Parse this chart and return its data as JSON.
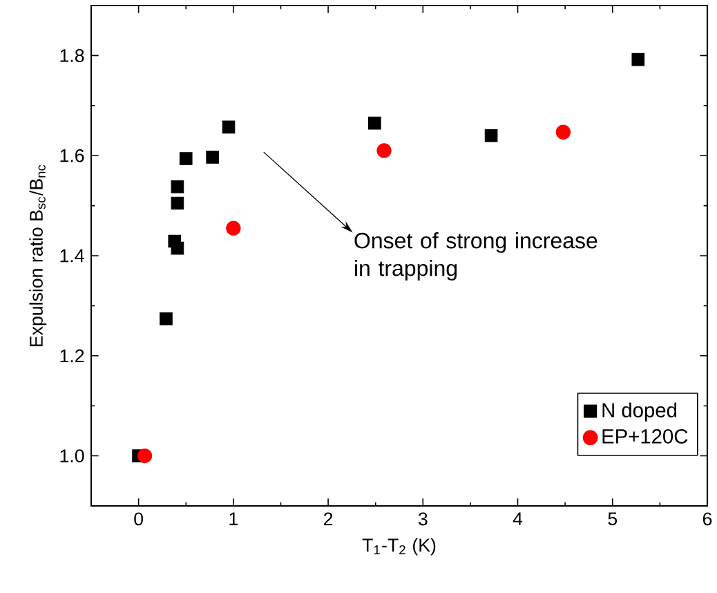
{
  "chart_data": {
    "type": "scatter",
    "xlabel": "T$_{1}$-T$_{2}$ (K)",
    "ylabel": "Expulsion ratio B$_{sc}$/B$_{nc}$",
    "xlim": [
      -0.5,
      6
    ],
    "ylim": [
      0.9,
      1.9
    ],
    "xticks": [
      0,
      1,
      2,
      3,
      4,
      5,
      6
    ],
    "yticks": [
      {
        "value": 1.0,
        "label": "1.0"
      },
      {
        "value": 1.2,
        "label": "1.2"
      },
      {
        "value": 1.4,
        "label": "1.4"
      },
      {
        "value": 1.6,
        "label": "1.6"
      },
      {
        "value": 1.8,
        "label": "1.8"
      }
    ],
    "grid": false,
    "legend": "bottom right",
    "annotations": [
      "Onset of strong increase\n in trapping"
    ],
    "series": [
      {
        "name": "N doped",
        "color": "#000000",
        "marker": "square",
        "x": [
          0.0,
          0.29,
          0.38,
          0.41,
          0.41,
          0.41,
          0.5,
          0.78,
          0.95,
          2.49,
          3.72,
          5.27
        ],
        "values": [
          1.0,
          1.274,
          1.429,
          1.415,
          1.505,
          1.538,
          1.594,
          1.597,
          1.657,
          1.665,
          1.64,
          1.792
        ]
      },
      {
        "name": "EP+120C",
        "color": "#ff0000",
        "marker": "circle",
        "x": [
          0.065,
          1.0,
          2.59,
          4.48
        ],
        "values": [
          1.0,
          1.455,
          1.61,
          1.647
        ]
      }
    ]
  }
}
